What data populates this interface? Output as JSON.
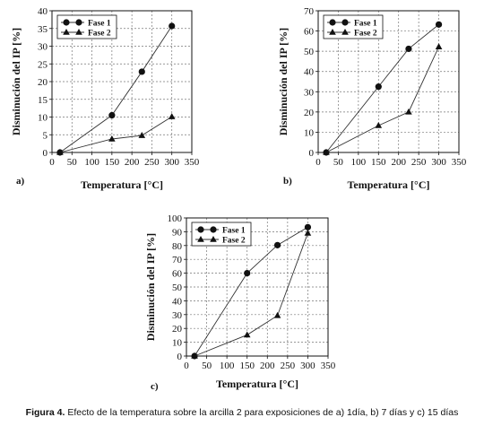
{
  "caption": {
    "label": "Figura 4.",
    "text": " Efecto de la temperatura sobre la arcilla 2 para exposiciones de a) 1día, b) 7 días y c) 15 días"
  },
  "chart_data": [
    {
      "type": "line",
      "panel": "a)",
      "xlabel": "Temperatura [°C]",
      "ylabel": "Disminución del IP [%]",
      "xlim": [
        0,
        350
      ],
      "ylim": [
        0,
        40
      ],
      "xticks": [
        0,
        50,
        100,
        150,
        200,
        250,
        300,
        350
      ],
      "yticks": [
        0,
        5,
        10,
        15,
        20,
        25,
        30,
        35,
        40
      ],
      "grid": true,
      "legend": "top-left",
      "series": [
        {
          "name": "Fase 1",
          "marker": "circle",
          "x": [
            20,
            150,
            225,
            300
          ],
          "y": [
            0,
            10.5,
            22.8,
            35.7
          ]
        },
        {
          "name": "Fase 2",
          "marker": "triangle",
          "x": [
            20,
            150,
            225,
            300
          ],
          "y": [
            0,
            3.8,
            4.8,
            10.1
          ]
        }
      ]
    },
    {
      "type": "line",
      "panel": "b)",
      "xlabel": "Temperatura [°C]",
      "ylabel": "Disminución del IP [%]",
      "xlim": [
        0,
        350
      ],
      "ylim": [
        0,
        70
      ],
      "xticks": [
        0,
        50,
        100,
        150,
        200,
        250,
        300,
        350
      ],
      "yticks": [
        0,
        10,
        20,
        30,
        40,
        50,
        60,
        70
      ],
      "grid": true,
      "legend": "top-left",
      "series": [
        {
          "name": "Fase 1",
          "marker": "circle",
          "x": [
            20,
            150,
            225,
            300
          ],
          "y": [
            0,
            32.5,
            51.2,
            63.2
          ]
        },
        {
          "name": "Fase 2",
          "marker": "triangle",
          "x": [
            20,
            150,
            225,
            300
          ],
          "y": [
            0,
            13.3,
            20,
            52.2
          ]
        }
      ]
    },
    {
      "type": "line",
      "panel": "c)",
      "xlabel": "Temperatura [°C]",
      "ylabel": "Disminución del IP [%]",
      "xlim": [
        0,
        350
      ],
      "ylim": [
        0,
        100
      ],
      "xticks": [
        0,
        50,
        100,
        150,
        200,
        250,
        300,
        350
      ],
      "yticks": [
        0,
        10,
        20,
        30,
        40,
        50,
        60,
        70,
        80,
        90,
        100
      ],
      "grid": true,
      "legend": "top-left",
      "series": [
        {
          "name": "Fase 1",
          "marker": "circle",
          "x": [
            20,
            150,
            225,
            300
          ],
          "y": [
            0,
            60,
            80.3,
            93.3
          ]
        },
        {
          "name": "Fase 2",
          "marker": "triangle",
          "x": [
            20,
            150,
            225,
            300
          ],
          "y": [
            0,
            15.3,
            29.3,
            89
          ]
        }
      ]
    }
  ]
}
